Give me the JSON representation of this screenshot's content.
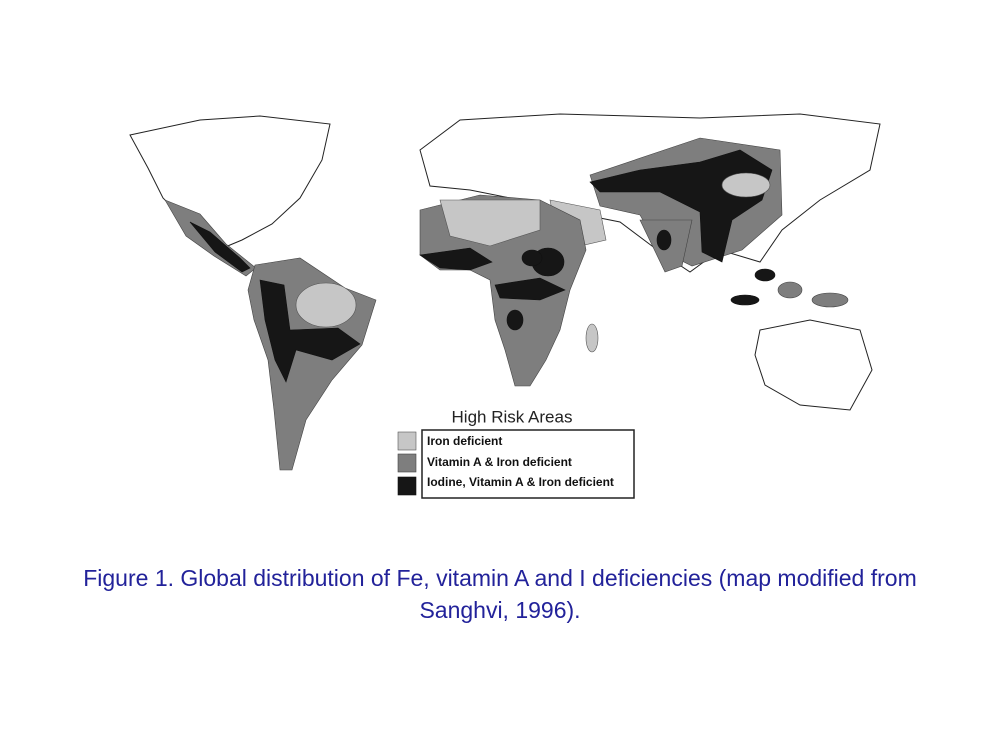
{
  "map": {
    "legend": {
      "title": "High Risk Areas",
      "items": [
        "Iron deficient",
        "Vitamin A & Iron deficient",
        "Iodine, Vitamin A & Iron deficient"
      ]
    }
  },
  "caption": "Figure 1. Global distribution of Fe, vitamin A and I deficiencies (map modified from Sanghvi, 1996)."
}
